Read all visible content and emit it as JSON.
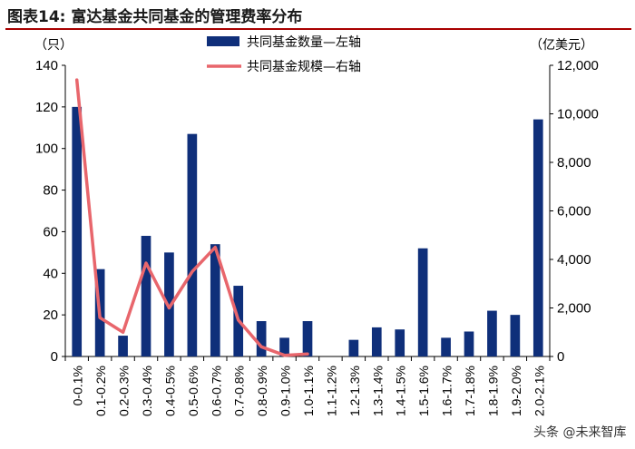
{
  "figure_title": "图表14:   富达基金共同基金的管理费率分布",
  "watermark": "头条 @未来智库",
  "colors": {
    "bar": "#0f2f7a",
    "line": "#e8666c",
    "title_rule": "#a80000"
  },
  "chart_data": {
    "type": "bar",
    "categories": [
      "0-0.1%",
      "0.1-0.2%",
      "0.2-0.3%",
      "0.3-0.4%",
      "0.4-0.5%",
      "0.5-0.6%",
      "0.6-0.7%",
      "0.7-0.8%",
      "0.8-0.9%",
      "0.9-1.0%",
      "1.0-1.1%",
      "1.1-1.2%",
      "1.2-1.3%",
      "1.3-1.4%",
      "1.4-1.5%",
      "1.5-1.6%",
      "1.6-1.7%",
      "1.7-1.8%",
      "1.8-1.9%",
      "1.9-2.0%",
      "2.0-2.1%"
    ],
    "series": [
      {
        "name": "共同基金数量—左轴",
        "chart": "bar",
        "axis": "left",
        "values": [
          120,
          42,
          10,
          58,
          50,
          107,
          54,
          34,
          17,
          9,
          17,
          0,
          8,
          14,
          13,
          52,
          9,
          12,
          22,
          20,
          114
        ]
      },
      {
        "name": "共同基金规模—右轴",
        "chart": "line",
        "axis": "right",
        "values": [
          11400,
          1600,
          1000,
          3850,
          2000,
          3500,
          4500,
          1500,
          400,
          50,
          100,
          null,
          null,
          null,
          null,
          null,
          null,
          null,
          null,
          null,
          null
        ]
      }
    ],
    "left_axis": {
      "unit": "（只）",
      "ylim": [
        0,
        140
      ],
      "ticks": [
        "0",
        "20",
        "40",
        "60",
        "80",
        "100",
        "120",
        "140"
      ]
    },
    "right_axis": {
      "unit": "（亿美元）",
      "ylim": [
        0,
        12000
      ],
      "ticks": [
        "0",
        "2,000",
        "4,000",
        "6,000",
        "8,000",
        "10,000",
        "12,000"
      ]
    },
    "legend_position": "top-center",
    "grid": false
  }
}
